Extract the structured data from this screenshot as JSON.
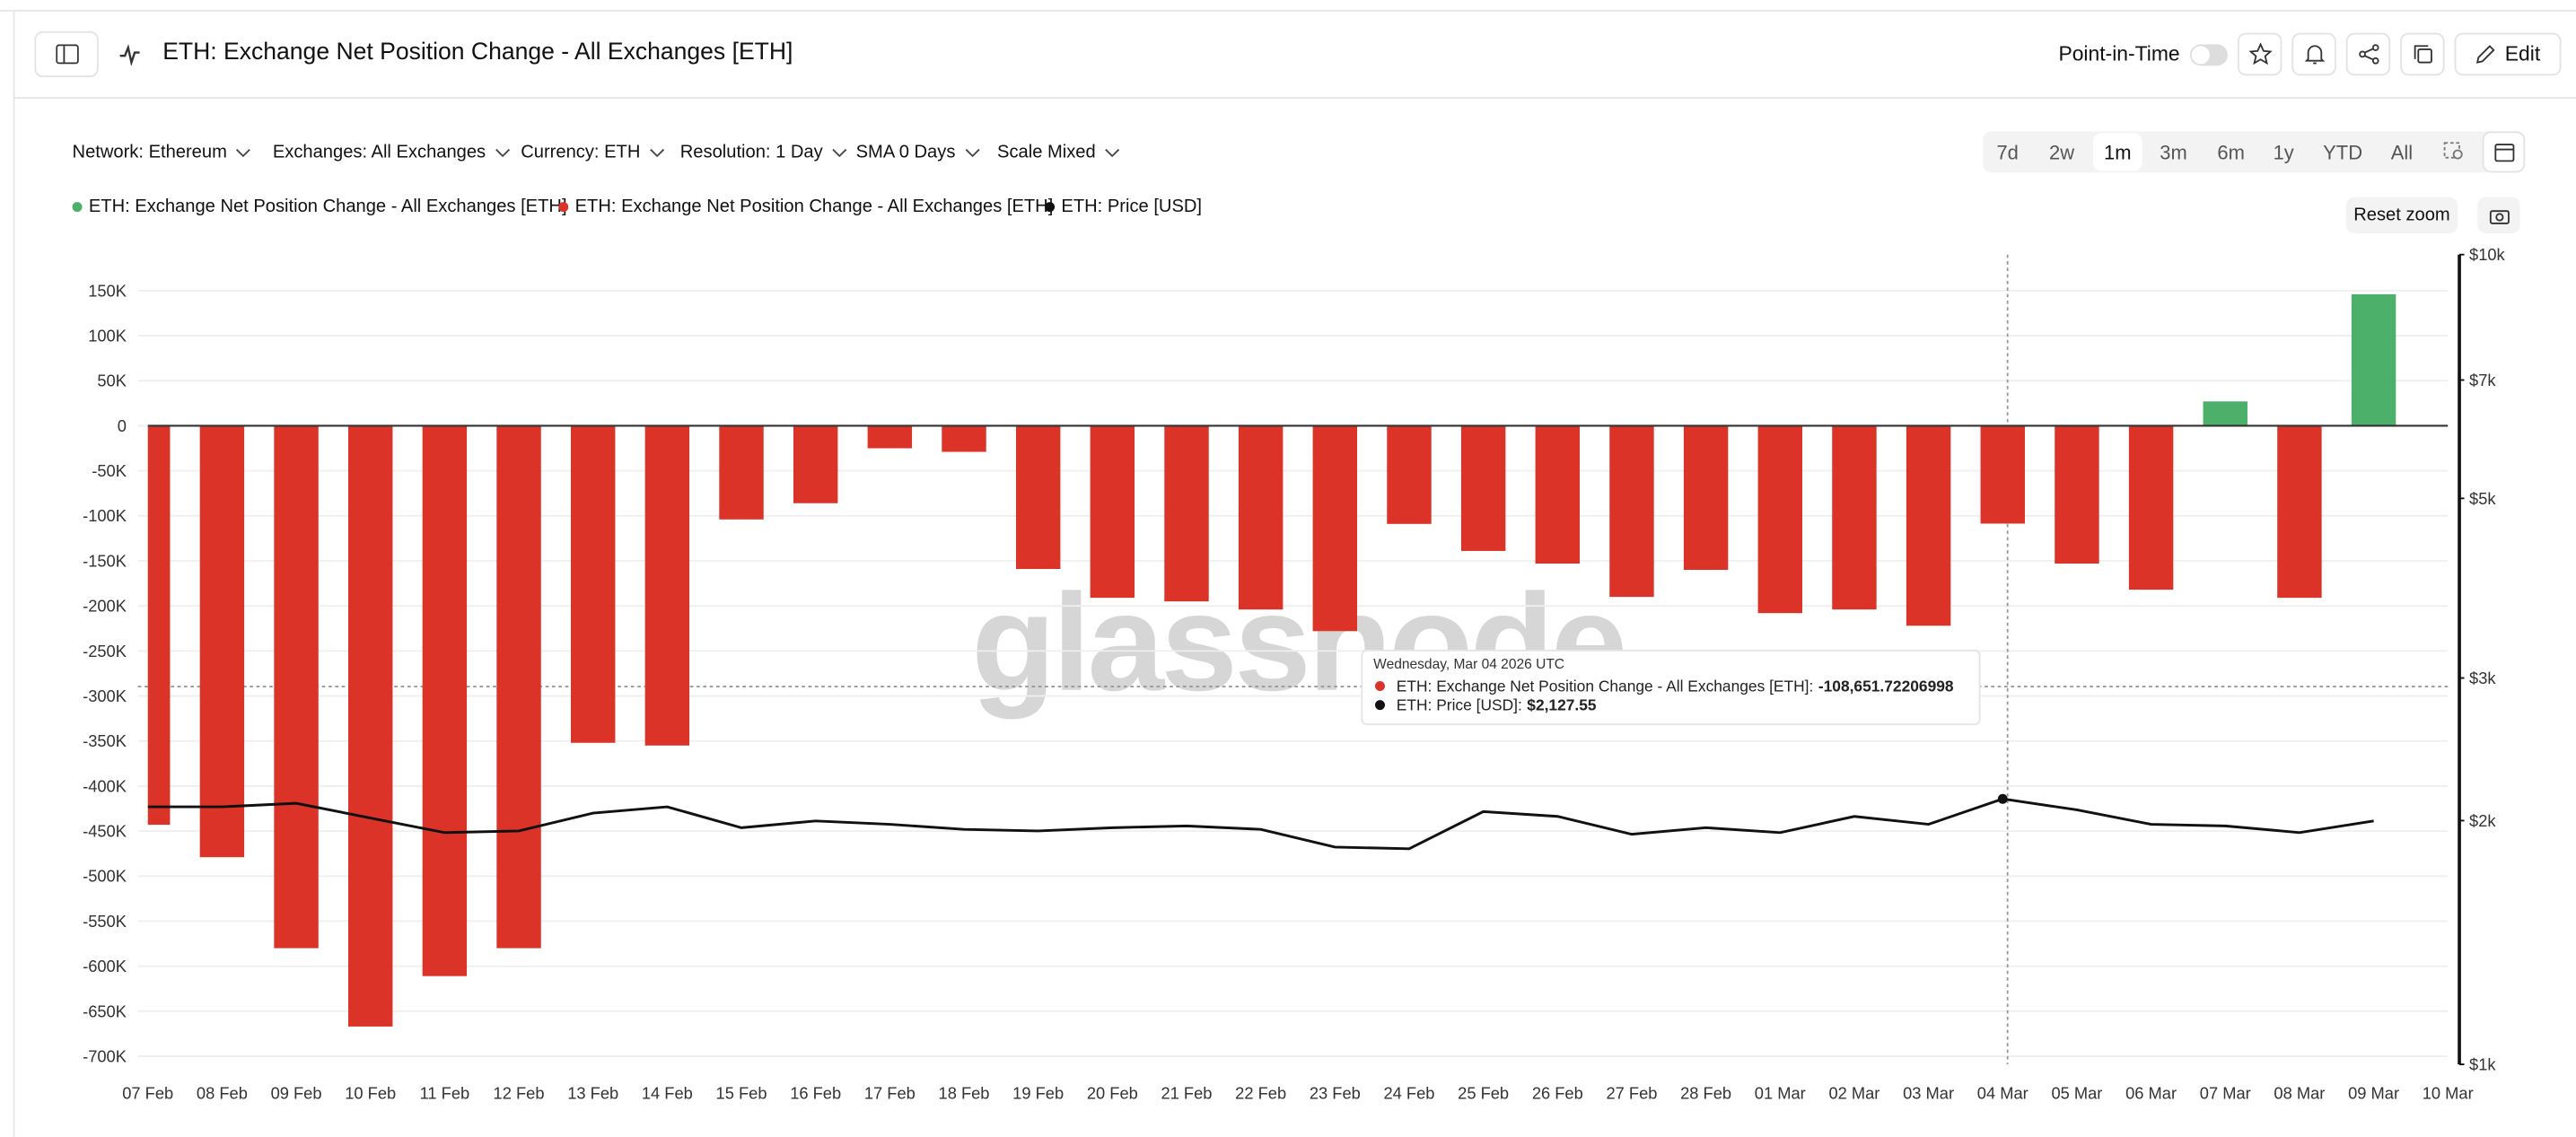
{
  "header": {
    "title": "ETH: Exchange Net Position Change - All Exchanges [ETH]",
    "point_in_time": "Point-in-Time",
    "edit": "Edit"
  },
  "filters": [
    "Network: Ethereum",
    "Exchanges: All Exchanges",
    "Currency: ETH",
    "Resolution: 1 Day",
    "SMA 0 Days",
    "Scale Mixed"
  ],
  "ranges": [
    "7d",
    "2w",
    "1m",
    "3m",
    "6m",
    "1y",
    "YTD",
    "All"
  ],
  "active_range": "1m",
  "reset_zoom": "Reset zoom",
  "watermark": "glassnode",
  "chart_data": {
    "type": "bar",
    "categories": [
      "07 Feb",
      "08 Feb",
      "09 Feb",
      "10 Feb",
      "11 Feb",
      "12 Feb",
      "13 Feb",
      "14 Feb",
      "15 Feb",
      "16 Feb",
      "17 Feb",
      "18 Feb",
      "19 Feb",
      "20 Feb",
      "21 Feb",
      "22 Feb",
      "23 Feb",
      "24 Feb",
      "25 Feb",
      "26 Feb",
      "27 Feb",
      "28 Feb",
      "01 Mar",
      "02 Mar",
      "03 Mar",
      "04 Mar",
      "05 Mar",
      "06 Mar",
      "07 Mar",
      "08 Mar",
      "09 Mar",
      "10 Mar"
    ],
    "series": [
      {
        "name": "ETH: Exchange Net Position Change - All Exchanges [ETH]",
        "color": "#4caf6a",
        "values": [
          null,
          null,
          null,
          null,
          null,
          null,
          null,
          null,
          null,
          null,
          null,
          null,
          null,
          null,
          null,
          null,
          null,
          null,
          null,
          null,
          null,
          null,
          null,
          null,
          null,
          null,
          null,
          null,
          27000,
          null,
          146000,
          null
        ]
      },
      {
        "name": "ETH: Exchange Net Position Change - All Exchanges [ETH]",
        "color": "#dc3328",
        "values": [
          -443000,
          -479000,
          -580000,
          -667000,
          -611000,
          -580000,
          -352000,
          -355000,
          -104000,
          -86000,
          -25000,
          -29000,
          -159000,
          -191000,
          -195000,
          -204000,
          -228000,
          -109000,
          -139000,
          -153000,
          -190000,
          -160000,
          -208000,
          -204000,
          -222000,
          -108651.72206998,
          -153000,
          -182000,
          null,
          -191000,
          null,
          null
        ]
      },
      {
        "name": "ETH: Price [USD]",
        "color": "#111111",
        "type": "line",
        "axis": "y2",
        "values": [
          2080,
          2080,
          2101,
          2015,
          1933,
          1942,
          2043,
          2080,
          1960,
          1998,
          1979,
          1951,
          1942,
          1960,
          1970,
          1951,
          1855,
          1846,
          2052,
          2024,
          1924,
          1960,
          1933,
          2024,
          1979,
          2127.55,
          2062,
          1979,
          1970,
          1933,
          1998,
          null
        ]
      }
    ],
    "ylim": [
      -709000,
      190000
    ],
    "yticks": [
      {
        "value": 150000,
        "label": "150K"
      },
      {
        "value": 100000,
        "label": "100K"
      },
      {
        "value": 50000,
        "label": "50K"
      },
      0,
      {
        "value": -50000,
        "label": "-50K"
      },
      {
        "value": -100000,
        "label": "-100K"
      },
      {
        "value": -150000,
        "label": "-150K"
      },
      {
        "value": -200000,
        "label": "-200K"
      },
      {
        "value": -250000,
        "label": "-250K"
      },
      {
        "value": -300000,
        "label": "-300K"
      },
      {
        "value": -350000,
        "label": "-350K"
      },
      {
        "value": -400000,
        "label": "-400K"
      },
      {
        "value": -450000,
        "label": "-450K"
      },
      {
        "value": -500000,
        "label": "-500K"
      },
      {
        "value": -550000,
        "label": "-550K"
      },
      {
        "value": -600000,
        "label": "-600K"
      },
      {
        "value": -650000,
        "label": "-650K"
      },
      {
        "value": -700000,
        "label": "-700K"
      }
    ],
    "y2lim": [
      1000,
      10000
    ],
    "y2scale": "log",
    "y2ticks": [
      {
        "value": 10000,
        "label": "$10k"
      },
      {
        "value": 7000,
        "label": "$7k"
      },
      {
        "value": 5000,
        "label": "$5k"
      },
      {
        "value": 3000,
        "label": "$3k"
      },
      {
        "value": 2000,
        "label": "$2k"
      },
      {
        "value": 1000,
        "label": "$1k"
      }
    ],
    "grid": true,
    "tooltip": {
      "date": "Wednesday, Mar 04 2026 UTC",
      "items": [
        {
          "label": "ETH: Exchange Net Position Change - All Exchanges [ETH]:",
          "value": "-108,651.72206998",
          "color": "#dc3328"
        },
        {
          "label": "ETH: Price [USD]:",
          "value": "$2,127.55",
          "color": "#111111"
        }
      ]
    }
  }
}
